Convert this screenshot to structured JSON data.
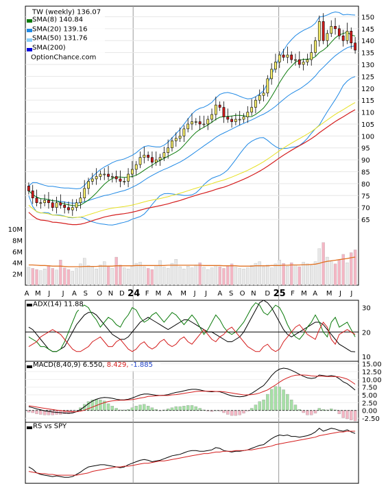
{
  "chart_data": [
    {
      "type": "candlestick",
      "panel": "price",
      "legend": {
        "title": "TW (weekly) 136.07",
        "items": [
          {
            "label": "SMA(8) 140.84",
            "color": "#0a7a0a"
          },
          {
            "label": "SMA(20) 139.16",
            "color": "#1e88e5"
          },
          {
            "label": "SMA(50) 131.76",
            "color": "#87cefa"
          },
          {
            "label": "SMA(200)",
            "color": "#0000dd"
          }
        ],
        "source": "OptionChance.com"
      },
      "yticks": [
        65,
        70,
        75,
        80,
        85,
        90,
        95,
        100,
        105,
        110,
        115,
        120,
        125,
        130,
        135,
        140,
        145,
        150
      ],
      "ylim": [
        61,
        153
      ],
      "closes": [
        77,
        74,
        72,
        72,
        73,
        72,
        70,
        72,
        71,
        70,
        69,
        70,
        72,
        74,
        78,
        81,
        82,
        83,
        84,
        84,
        83,
        83,
        82,
        81,
        81,
        84,
        86,
        88,
        91,
        92,
        91,
        89,
        90,
        91,
        93,
        95,
        98,
        99,
        100,
        103,
        105,
        106,
        106,
        105,
        105,
        107,
        109,
        113,
        112,
        108,
        107,
        106,
        107,
        107,
        108,
        110,
        112,
        115,
        117,
        118,
        124,
        128,
        131,
        134,
        133,
        134,
        132,
        132,
        130,
        131,
        132,
        135,
        140,
        148,
        140,
        143,
        146,
        145,
        142,
        140,
        144,
        139,
        136
      ],
      "colors": {
        "up": "#f5ec6a",
        "down": "#d41c1c",
        "sma8": "#0a7a0a",
        "bb": "#1e88e5",
        "sma50": "#e6e020",
        "sma200": "#d41c1c"
      }
    },
    {
      "type": "bar",
      "panel": "volume",
      "yticks": [
        "10M",
        "8M",
        "6M",
        "4M",
        "2M"
      ],
      "ytick_values": [
        10,
        8,
        6,
        4,
        2
      ],
      "ylim": [
        0,
        10.5
      ],
      "unit": "M",
      "values": [
        3.2,
        3.0,
        2.8,
        2.6,
        2.9,
        3.5,
        3.0,
        2.7,
        4.5,
        3.1,
        2.8,
        2.5,
        3.0,
        3.8,
        4.8,
        3.5,
        3.2,
        2.9,
        3.6,
        4.2,
        3.3,
        3.0,
        5.0,
        3.6,
        3.1,
        2.9,
        3.4,
        3.9,
        4.1,
        3.3,
        3.0,
        2.8,
        3.5,
        4.4,
        3.2,
        3.0,
        3.9,
        4.6,
        3.3,
        2.9,
        3.4,
        3.1,
        3.6,
        4.0,
        3.2,
        2.8,
        3.1,
        3.5,
        3.3,
        3.0,
        3.4,
        3.8,
        3.2,
        3.0,
        2.9,
        3.1,
        3.5,
        3.9,
        4.2,
        3.3,
        3.6,
        3.1,
        3.8,
        4.5,
        3.9,
        3.4,
        4.0,
        3.6,
        3.3,
        4.1,
        3.8,
        3.5,
        4.2,
        6.5,
        7.6,
        5.0,
        4.2,
        3.8,
        4.5,
        5.5,
        4.0,
        5.8,
        6.3
      ],
      "avg": [
        3.6,
        3.6,
        3.55,
        3.5,
        3.5,
        3.45,
        3.4,
        3.4,
        3.4,
        3.35,
        3.3,
        3.3,
        3.3,
        3.3,
        3.35,
        3.35,
        3.35,
        3.35,
        3.4,
        3.4,
        3.4,
        3.4,
        3.45,
        3.45,
        3.45,
        3.45,
        3.45,
        3.5,
        3.5,
        3.5,
        3.5,
        3.5,
        3.5,
        3.5,
        3.5,
        3.55,
        3.55,
        3.55,
        3.55,
        3.55,
        3.55,
        3.55,
        3.55,
        3.55,
        3.5,
        3.5,
        3.5,
        3.5,
        3.5,
        3.45,
        3.45,
        3.45,
        3.45,
        3.4,
        3.4,
        3.4,
        3.4,
        3.45,
        3.45,
        3.45,
        3.45,
        3.5,
        3.5,
        3.5,
        3.55,
        3.55,
        3.6,
        3.6,
        3.6,
        3.65,
        3.65,
        3.7,
        3.75,
        3.9,
        4.1,
        4.25,
        4.35,
        4.45,
        4.55,
        4.65,
        4.75,
        4.9,
        5.0
      ],
      "colors": {
        "up": "#e8e8e8",
        "down": "#f4b6c4",
        "avg": "#e07020"
      }
    },
    {
      "type": "line",
      "panel": "adx",
      "label": "ADX(14) 11.88",
      "yticks": [
        10,
        20,
        30
      ],
      "ylim": [
        8,
        33
      ],
      "series": [
        {
          "key": "adx",
          "color": "#000000",
          "values": [
            22,
            21,
            19,
            17,
            15,
            13,
            12,
            12,
            13,
            14,
            17,
            20,
            23,
            25,
            27,
            28,
            28,
            27,
            25,
            23,
            21,
            19,
            18,
            17,
            17,
            18,
            20,
            22,
            24,
            25,
            26,
            25,
            24,
            23,
            22,
            21,
            22,
            23,
            24,
            25,
            25,
            24,
            23,
            22,
            21,
            20,
            20,
            19,
            18,
            17,
            16,
            16,
            17,
            18,
            20,
            23,
            26,
            29,
            32,
            33,
            32,
            30,
            27,
            24,
            21,
            19,
            18,
            19,
            20,
            21,
            22,
            23,
            24,
            24,
            23,
            21,
            19,
            17,
            15,
            14,
            13,
            12,
            11.9
          ]
        },
        {
          "key": "plus_di",
          "color": "#0a7a0a",
          "values": [
            18,
            17,
            16,
            14,
            14,
            13,
            12,
            12,
            13,
            16,
            20,
            24,
            28,
            30,
            31,
            30,
            27,
            25,
            22,
            24,
            26,
            25,
            23,
            22,
            25,
            27,
            30,
            29,
            26,
            24,
            25,
            27,
            28,
            26,
            24,
            26,
            28,
            27,
            25,
            23,
            25,
            27,
            25,
            22,
            19,
            21,
            24,
            27,
            25,
            22,
            20,
            19,
            20,
            22,
            24,
            27,
            30,
            32,
            31,
            28,
            27,
            29,
            31,
            30,
            27,
            23,
            20,
            18,
            17,
            19,
            22,
            24,
            27,
            24,
            20,
            18,
            24,
            26,
            22,
            23,
            24,
            21,
            18
          ]
        },
        {
          "key": "minus_di",
          "color": "#d41c1c",
          "values": [
            14,
            15,
            16,
            18,
            19,
            20,
            21,
            20,
            19,
            17,
            15,
            13,
            12,
            12,
            13,
            14,
            16,
            17,
            18,
            16,
            14,
            14,
            16,
            17,
            15,
            13,
            12,
            13,
            15,
            16,
            14,
            13,
            14,
            16,
            17,
            15,
            14,
            15,
            17,
            18,
            16,
            15,
            17,
            19,
            21,
            19,
            17,
            16,
            18,
            19,
            21,
            22,
            20,
            18,
            16,
            14,
            13,
            12,
            12,
            14,
            15,
            13,
            12,
            13,
            16,
            18,
            20,
            22,
            23,
            21,
            19,
            18,
            17,
            21,
            24,
            22,
            17,
            15,
            19,
            20,
            21,
            20,
            19
          ]
        }
      ]
    },
    {
      "type": "line",
      "panel": "macd",
      "label": "MACD(8,40,9) 6.550,",
      "signal_label": "8.429,",
      "hist_label": "-1.885",
      "yticks": [
        15.0,
        12.5,
        10.0,
        7.5,
        5.0,
        2.5,
        0.0,
        -2.5
      ],
      "ytick_labels": [
        "15.00",
        "12.50",
        "10.00",
        "7.50",
        "5.00",
        "2.50",
        "0.00",
        "-2.50"
      ],
      "ylim": [
        -3.8,
        15.8
      ],
      "series": [
        {
          "key": "macd",
          "color": "#000000",
          "values": [
            1.2,
            0.9,
            0.5,
            0.2,
            -0.1,
            -0.3,
            -0.5,
            -0.6,
            -0.7,
            -0.8,
            -0.9,
            -0.8,
            -0.4,
            0.3,
            1.2,
            2.2,
            3.0,
            3.6,
            4.0,
            4.2,
            4.1,
            3.9,
            3.6,
            3.4,
            3.4,
            3.6,
            4.0,
            4.5,
            5.0,
            5.3,
            5.3,
            5.1,
            4.9,
            4.8,
            4.9,
            5.1,
            5.5,
            5.8,
            6.0,
            6.3,
            6.6,
            6.8,
            6.8,
            6.6,
            6.3,
            6.1,
            6.0,
            6.1,
            6.0,
            5.6,
            5.1,
            4.7,
            4.5,
            4.4,
            4.5,
            4.9,
            5.5,
            6.3,
            7.2,
            8.0,
            9.5,
            11.2,
            12.5,
            13.3,
            13.6,
            13.4,
            12.9,
            12.3,
            11.6,
            11.0,
            10.5,
            10.3,
            10.5,
            11.4,
            11.2,
            11.0,
            11.2,
            11.0,
            10.2,
            9.2,
            8.6,
            7.6,
            6.55
          ]
        },
        {
          "key": "signal",
          "color": "#d41c1c",
          "values": [
            1.5,
            1.3,
            1.1,
            0.9,
            0.7,
            0.5,
            0.3,
            0.1,
            0.0,
            -0.2,
            -0.3,
            -0.4,
            -0.4,
            -0.2,
            0.1,
            0.6,
            1.1,
            1.6,
            2.1,
            2.5,
            2.9,
            3.1,
            3.2,
            3.3,
            3.3,
            3.4,
            3.5,
            3.7,
            4.0,
            4.2,
            4.5,
            4.6,
            4.7,
            4.8,
            4.8,
            4.8,
            5.0,
            5.1,
            5.3,
            5.5,
            5.7,
            5.9,
            6.1,
            6.2,
            6.2,
            6.2,
            6.2,
            6.1,
            6.1,
            6.0,
            5.8,
            5.6,
            5.4,
            5.2,
            5.0,
            5.0,
            5.1,
            5.3,
            5.6,
            6.1,
            6.6,
            7.4,
            8.2,
            9.1,
            9.9,
            10.5,
            11.0,
            11.3,
            11.4,
            11.4,
            11.3,
            11.1,
            11.0,
            11.0,
            11.0,
            10.9,
            10.9,
            10.9,
            10.8,
            10.5,
            10.1,
            9.3,
            8.43
          ]
        }
      ],
      "hist_colors": {
        "pos": "#a6e0a6",
        "neg": "#f4b6c4"
      }
    },
    {
      "type": "line",
      "panel": "rs",
      "label": "RS vs SPY",
      "series": [
        {
          "key": "rs",
          "color": "#000000",
          "values": [
            0.3,
            0.27,
            0.22,
            0.2,
            0.19,
            0.18,
            0.17,
            0.18,
            0.17,
            0.16,
            0.16,
            0.17,
            0.2,
            0.23,
            0.27,
            0.3,
            0.31,
            0.32,
            0.33,
            0.33,
            0.32,
            0.31,
            0.3,
            0.29,
            0.3,
            0.33,
            0.35,
            0.37,
            0.39,
            0.4,
            0.39,
            0.37,
            0.38,
            0.39,
            0.41,
            0.43,
            0.45,
            0.46,
            0.47,
            0.49,
            0.51,
            0.52,
            0.52,
            0.51,
            0.51,
            0.52,
            0.53,
            0.56,
            0.55,
            0.52,
            0.51,
            0.5,
            0.51,
            0.51,
            0.52,
            0.53,
            0.55,
            0.57,
            0.59,
            0.6,
            0.64,
            0.68,
            0.71,
            0.73,
            0.72,
            0.73,
            0.71,
            0.71,
            0.7,
            0.71,
            0.72,
            0.74,
            0.77,
            0.82,
            0.78,
            0.8,
            0.82,
            0.81,
            0.79,
            0.78,
            0.8,
            0.77,
            0.75
          ]
        },
        {
          "key": "rs_ma",
          "color": "#d41c1c",
          "values": [
            0.24,
            0.23,
            0.22,
            0.21,
            0.21,
            0.2,
            0.2,
            0.19,
            0.19,
            0.19,
            0.19,
            0.19,
            0.19,
            0.2,
            0.21,
            0.22,
            0.24,
            0.25,
            0.26,
            0.27,
            0.28,
            0.29,
            0.3,
            0.3,
            0.31,
            0.31,
            0.32,
            0.33,
            0.34,
            0.35,
            0.35,
            0.36,
            0.37,
            0.38,
            0.38,
            0.39,
            0.4,
            0.41,
            0.42,
            0.43,
            0.44,
            0.45,
            0.46,
            0.47,
            0.48,
            0.48,
            0.49,
            0.5,
            0.5,
            0.51,
            0.51,
            0.51,
            0.52,
            0.52,
            0.52,
            0.53,
            0.53,
            0.54,
            0.55,
            0.56,
            0.57,
            0.58,
            0.6,
            0.61,
            0.62,
            0.63,
            0.64,
            0.65,
            0.66,
            0.67,
            0.68,
            0.69,
            0.7,
            0.72,
            0.73,
            0.74,
            0.75,
            0.76,
            0.77,
            0.77,
            0.78,
            0.78,
            0.78
          ]
        }
      ]
    }
  ],
  "x_axis": {
    "months": [
      {
        "label": "A",
        "i": 0
      },
      {
        "label": "M",
        "i": 4
      },
      {
        "label": "J",
        "i": 8
      },
      {
        "label": "J",
        "i": 13
      },
      {
        "label": "A",
        "i": 17
      },
      {
        "label": "S",
        "i": 21
      },
      {
        "label": "O",
        "i": 26
      },
      {
        "label": "N",
        "i": 30
      },
      {
        "label": "D",
        "i": 34
      },
      {
        "label": "F",
        "i": 43
      },
      {
        "label": "M",
        "i": 47
      },
      {
        "label": "A",
        "i": 51
      },
      {
        "label": "M",
        "i": 56
      },
      {
        "label": "J",
        "i": 60
      },
      {
        "label": "J",
        "i": 64
      },
      {
        "label": "A",
        "i": 69
      },
      {
        "label": "S",
        "i": 73
      },
      {
        "label": "O",
        "i": 77
      },
      {
        "label": "N",
        "i": 81
      },
      {
        "label": "D",
        "i": 86
      },
      {
        "label": "F",
        "i": 95
      },
      {
        "label": "M",
        "i": 99
      },
      {
        "label": "A",
        "i": 103
      },
      {
        "label": "M",
        "i": 108
      },
      {
        "label": "J",
        "i": 112
      },
      {
        "label": "J",
        "i": 116
      }
    ],
    "years": [
      {
        "label": "24",
        "i": 38
      },
      {
        "label": "25",
        "i": 90
      }
    ],
    "total_slots": 118
  }
}
